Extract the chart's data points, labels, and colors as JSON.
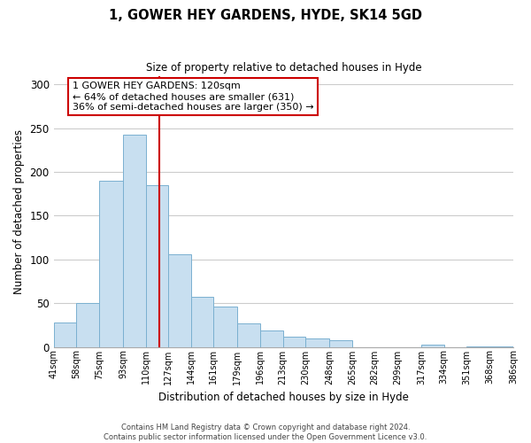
{
  "title": "1, GOWER HEY GARDENS, HYDE, SK14 5GD",
  "subtitle": "Size of property relative to detached houses in Hyde",
  "xlabel": "Distribution of detached houses by size in Hyde",
  "ylabel": "Number of detached properties",
  "bar_color": "#c8dff0",
  "bar_edge_color": "#7ab0d0",
  "bins": [
    41,
    58,
    75,
    93,
    110,
    127,
    144,
    161,
    179,
    196,
    213,
    230,
    248,
    265,
    282,
    299,
    317,
    334,
    351,
    368,
    386
  ],
  "counts": [
    28,
    50,
    190,
    243,
    185,
    106,
    57,
    46,
    27,
    19,
    12,
    10,
    8,
    0,
    0,
    0,
    3,
    0,
    1,
    1
  ],
  "tick_labels": [
    "41sqm",
    "58sqm",
    "75sqm",
    "93sqm",
    "110sqm",
    "127sqm",
    "144sqm",
    "161sqm",
    "179sqm",
    "196sqm",
    "213sqm",
    "230sqm",
    "248sqm",
    "265sqm",
    "282sqm",
    "299sqm",
    "317sqm",
    "334sqm",
    "351sqm",
    "368sqm",
    "386sqm"
  ],
  "vline_x": 120,
  "vline_color": "#cc0000",
  "ylim": [
    0,
    310
  ],
  "yticks": [
    0,
    50,
    100,
    150,
    200,
    250,
    300
  ],
  "annotation_title": "1 GOWER HEY GARDENS: 120sqm",
  "annotation_line1": "← 64% of detached houses are smaller (631)",
  "annotation_line2": "36% of semi-detached houses are larger (350) →",
  "annotation_box_color": "#ffffff",
  "annotation_box_edge": "#cc0000",
  "footer_line1": "Contains HM Land Registry data © Crown copyright and database right 2024.",
  "footer_line2": "Contains public sector information licensed under the Open Government Licence v3.0.",
  "background_color": "#ffffff",
  "grid_color": "#cccccc"
}
